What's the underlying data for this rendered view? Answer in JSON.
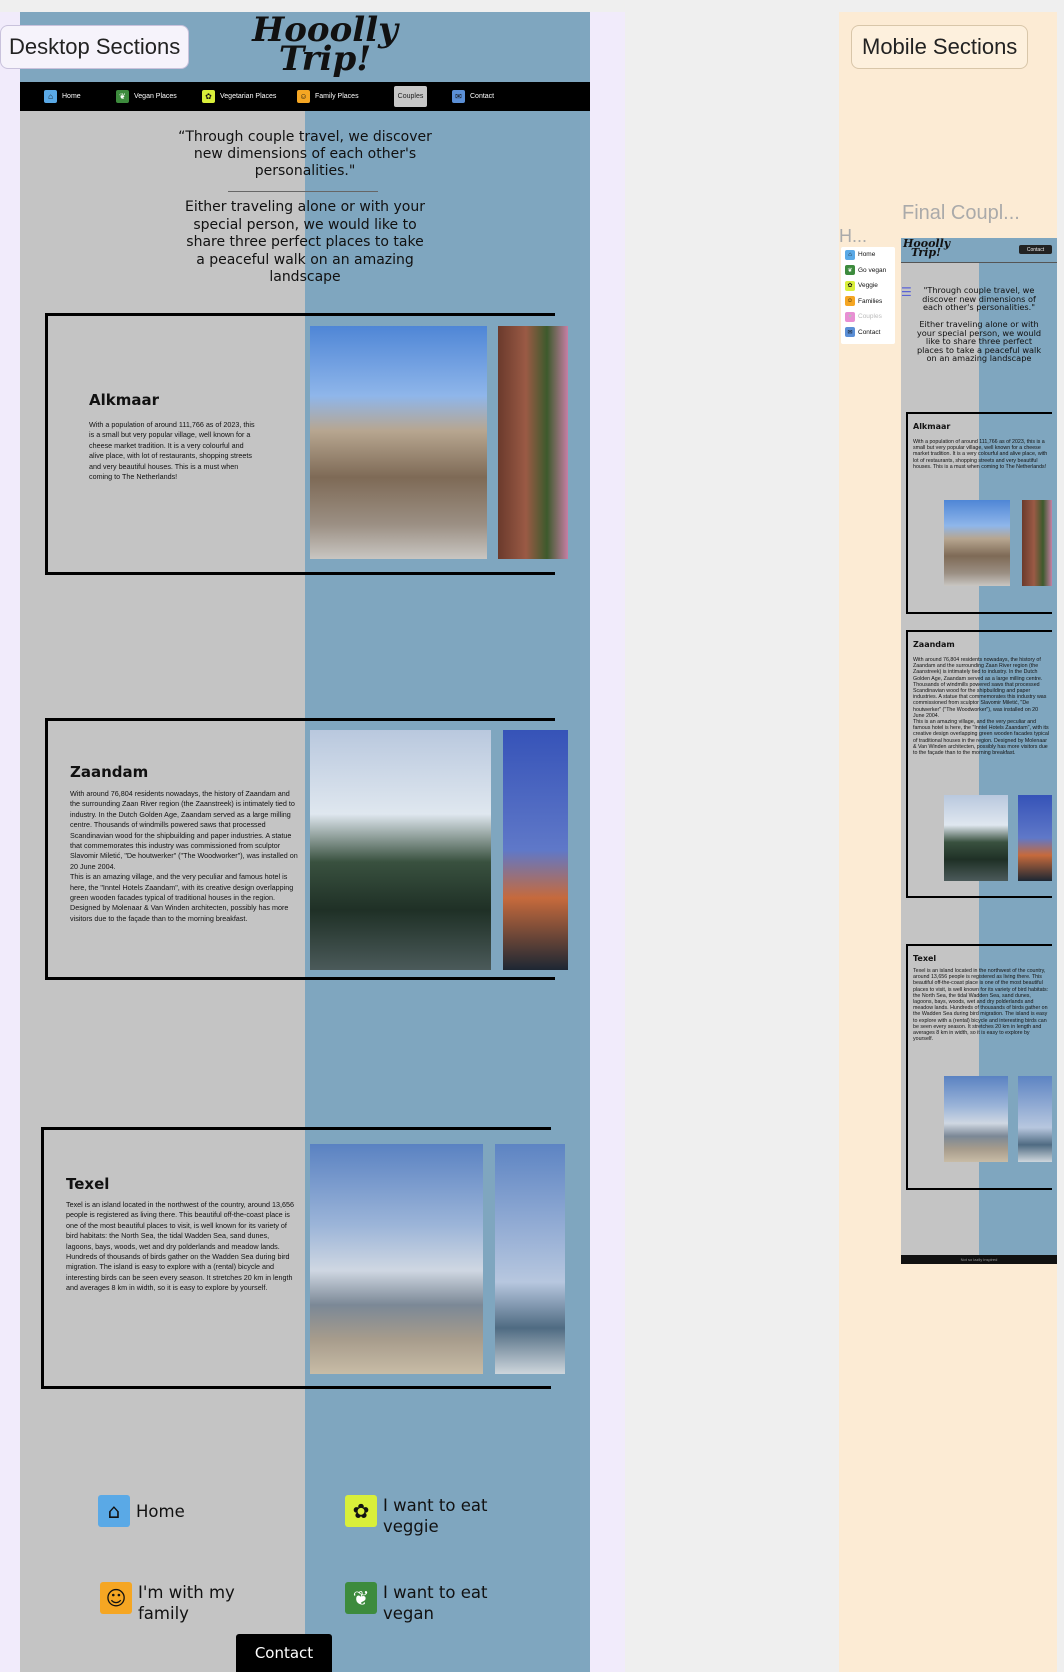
{
  "desktop": {
    "section_label": "Desktop Sections",
    "logo_text": "Hooolly Trip!",
    "nav": [
      {
        "label": "Home",
        "icon": "home-icon",
        "color": "#5aa9e6"
      },
      {
        "label": "Vegan Places",
        "icon": "leaf-icon",
        "color": "#3d8b3d"
      },
      {
        "label": "Vegetarian Places",
        "icon": "lotus-icon",
        "color": "#d9ef3a"
      },
      {
        "label": "Family Places",
        "icon": "family-icon",
        "color": "#f5a623"
      },
      {
        "label": "Couples",
        "icon": "",
        "color": "#c7c7c7",
        "active": true
      },
      {
        "label": "Contact",
        "icon": "chat-icon",
        "color": "#5b8fd6"
      }
    ],
    "quote": "“Through couple travel, we discover new dimensions of each other's personalities.\"",
    "intro": "Either traveling alone or with your special person, we would like to share three perfect places to take a peaceful walk on an amazing landscape",
    "cards": [
      {
        "title": "Alkmaar",
        "body": "With a population of around 111,766 as of 2023, this is a small but very popular village, well known for a cheese market tradition. It is a very colourful and alive place, with lot of restaurants, shopping streets and very beautiful houses. This is a must when coming to The Netherlands!"
      },
      {
        "title": "Zaandam",
        "body": "With around 76,804 residents nowadays, the history of Zaandam and the surrounding Zaan River region (the Zaanstreek) is intimately tied to industry. In the Dutch Golden Age, Zaandam served as a large milling centre. Thousands of windmills powered saws that processed Scandinavian wood for the shipbuilding and paper industries. A statue that commemorates this industry was commissioned from sculptor Slavomir Miletić, \"De houtwerker\" (\"The Woodworker\"), was installed on 20 June 2004.\nThis is an amazing village, and the very peculiar and famous hotel is here, the \"Inntel Hotels Zaandam\", with its creative design overlapping green wooden facades typical of traditional houses in the region. Designed by Molenaar & Van Winden architecten, possibly has more visitors due to the façade than to the morning breakfast."
      },
      {
        "title": "Texel",
        "body": "Texel is an island located in the northwest of the country, around 13,656 people is registered as living there. This beautiful off-the-coast place is one of the most beautiful places to visit, is well known for its variety of bird habitats: the North Sea, the tidal Wadden Sea, sand dunes, lagoons, bays, woods, wet and dry polderlands and meadow lands. Hundreds of thousands of birds gather on the Wadden Sea during bird migration. The island is easy to explore with a (rental) bicycle and interesting birds can be seen every season. It stretches 20 km in length and averages 8 km in width, so it is easy to explore by yourself."
      }
    ],
    "footer_links": [
      {
        "label": "Home",
        "icon": "home-icon",
        "color": "#5aa9e6"
      },
      {
        "label": "I want to eat veggie",
        "icon": "lotus-icon",
        "color": "#d9ef3a"
      },
      {
        "label": "I'm with my family",
        "icon": "family-icon",
        "color": "#f5a623"
      },
      {
        "label": "I want to eat vegan",
        "icon": "leaf-icon",
        "color": "#3d8b3d"
      }
    ],
    "contact_label": "Contact"
  },
  "mobile": {
    "section_label": "Mobile Sections",
    "frame_label": "Final Coupl...",
    "h_label": "H...",
    "menu": [
      {
        "label": "Home",
        "color": "#5aa9e6"
      },
      {
        "label": "Go vegan",
        "color": "#3d8b3d"
      },
      {
        "label": "Veggie",
        "color": "#d9ef3a"
      },
      {
        "label": "Families",
        "color": "#f5a623"
      },
      {
        "label": "Couples",
        "color": "#e88fd3",
        "active": true
      },
      {
        "label": "Contact",
        "color": "#5b8fd6"
      }
    ],
    "logo_text": "Hooolly Trip!",
    "contact_label": "Contact",
    "quote": "\"Through couple travel, we discover new dimensions of each other's personalities.\"",
    "intro": "Either traveling alone or with your special person, we would like to share three perfect places to take a peaceful walk on an amazing landscape",
    "footer_text": "Not so lazily inspired"
  }
}
